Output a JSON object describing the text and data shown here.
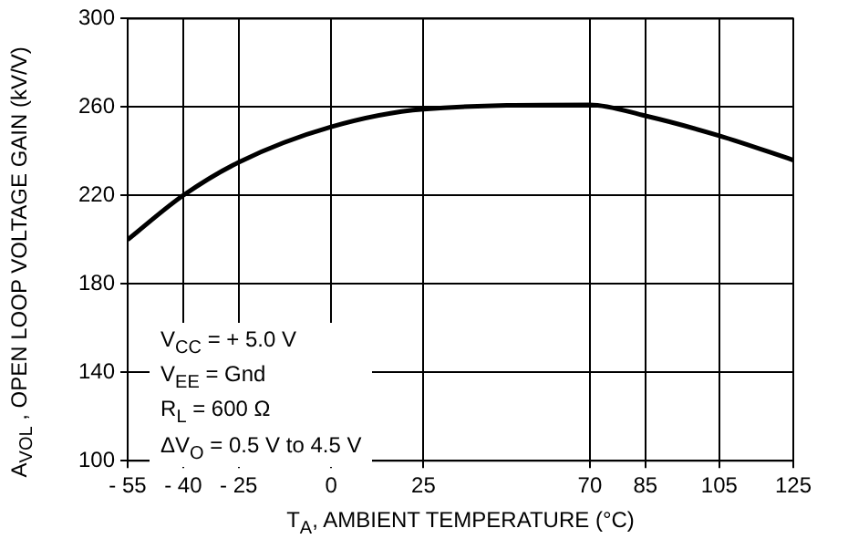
{
  "chart_data": {
    "type": "line",
    "xlabel": "T$_{A}$, AMBIENT TEMPERATURE (°C)",
    "ylabel": "A$_{VOL}$ , OPEN LOOP VOLTAGE GAIN (kV/V)",
    "annotations": [
      "V$_{CC}$ = + 5.0 V",
      "V$_{EE}$ = Gnd",
      "R$_{L}$ = 600 Ω",
      "ΔV$_{O}$ = 0.5 V to 4.5 V"
    ],
    "x": [
      -55,
      -40,
      -25,
      0,
      25,
      70,
      85,
      105,
      125
    ],
    "series": [
      {
        "color": "#000000",
        "values": [
          200,
          220,
          235,
          251,
          259,
          261,
          256,
          247,
          236
        ]
      }
    ],
    "xlim": [
      -55,
      125
    ],
    "xticks": [
      {
        "value": -55,
        "label": "- 55"
      },
      {
        "value": -40,
        "label": "- 40"
      },
      {
        "value": -25,
        "label": "- 25"
      },
      0,
      25,
      70,
      85,
      105,
      125
    ],
    "ylim": [
      100,
      300
    ],
    "yticks": [
      100,
      140,
      180,
      220,
      260,
      300
    ],
    "grid": true,
    "legend": false,
    "marker": "none",
    "line_style": "solid"
  }
}
